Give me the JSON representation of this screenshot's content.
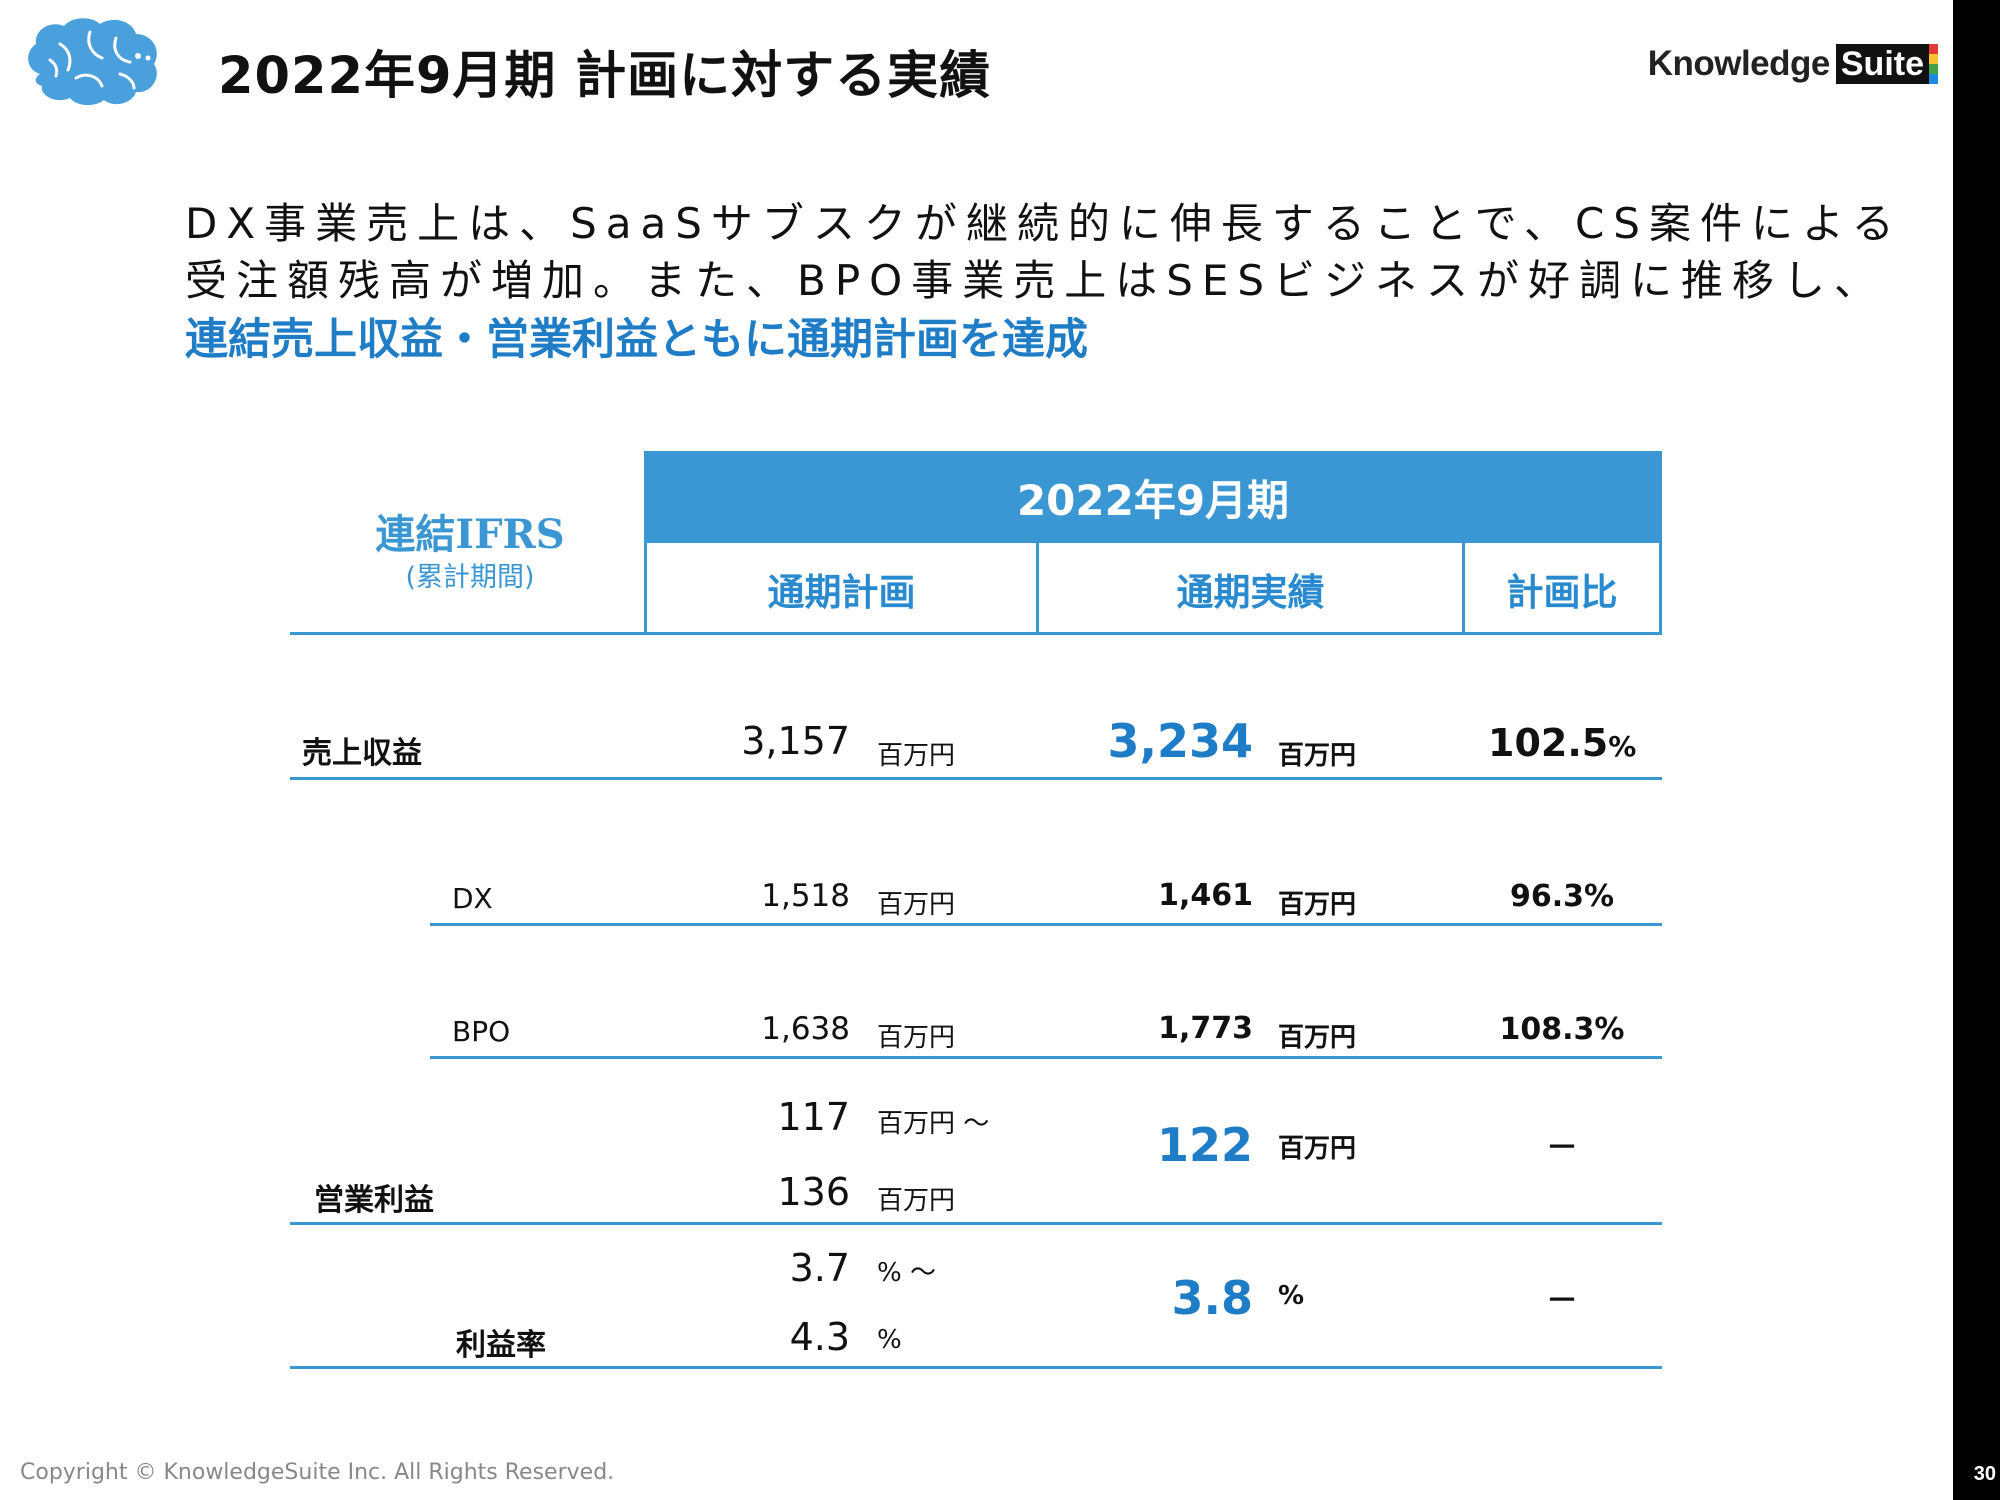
{
  "header": {
    "title": "2022年9月期 計画に対する実績",
    "logo_left": "Knowledge",
    "logo_right": "Suite"
  },
  "lead": {
    "line1": "DX事業売上は、SaaSサブスクが継続的に伸長することで、CS案件による",
    "line2": "受注額残高が増加。また、BPO事業売上はSESビジネスが好調に推移し、",
    "highlight": "連結売上収益・営業利益ともに通期計画を達成"
  },
  "table": {
    "corner_title": "連結IFRS",
    "corner_sub": "(累計期間)",
    "period": "2022年9月期",
    "columns": [
      "通期計画",
      "通期実績",
      "計画比"
    ],
    "rows": {
      "revenue": {
        "label": "売上収益",
        "plan": "3,157",
        "plan_unit": "百万円",
        "actual": "3,234",
        "actual_unit": "百万円",
        "ratio": "102.5",
        "ratio_unit": "%"
      },
      "dx": {
        "label": "DX",
        "plan": "1,518",
        "plan_unit": "百万円",
        "actual": "1,461",
        "actual_unit": "百万円",
        "ratio": "96.3%"
      },
      "bpo": {
        "label": "BPO",
        "plan": "1,638",
        "plan_unit": "百万円",
        "actual": "1,773",
        "actual_unit": "百万円",
        "ratio": "108.3%"
      },
      "op_profit": {
        "label": "営業利益",
        "plan_low": "117",
        "plan_low_unit": "百万円 ～",
        "plan_high": "136",
        "plan_high_unit": "百万円",
        "actual": "122",
        "actual_unit": "百万円",
        "ratio": "－"
      },
      "margin": {
        "label": "利益率",
        "plan_low": "3.7",
        "plan_low_unit": "% ～",
        "plan_high": "4.3",
        "plan_high_unit": "%",
        "actual": "3.8",
        "actual_unit": "%",
        "ratio": "－"
      }
    }
  },
  "footer": {
    "copyright": "Copyright © KnowledgeSuite Inc. All Rights Reserved.",
    "page": "30"
  },
  "colors": {
    "accent": "#3b97d3",
    "highlight": "#1f7cc6",
    "sidebar": "#000000"
  }
}
